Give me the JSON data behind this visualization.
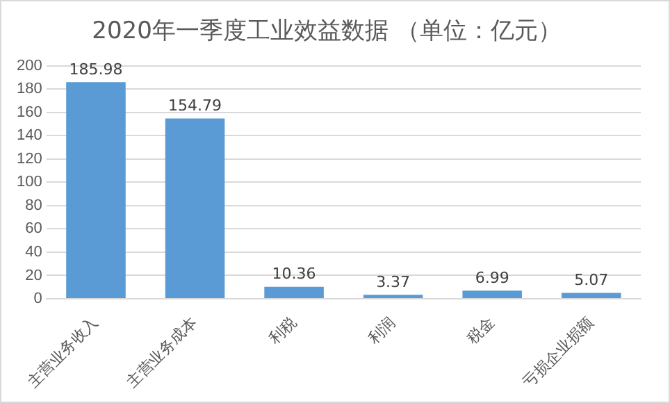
{
  "chart_data": {
    "type": "bar",
    "title": "2020年一季度工业效益数据 （单位：亿元）",
    "categories": [
      "主营业务收入",
      "主营业务成本",
      "利税",
      "利润",
      "税金",
      "亏损企业损额"
    ],
    "values": [
      185.98,
      154.79,
      10.36,
      3.37,
      6.99,
      5.07
    ],
    "color": "#5b9bd5",
    "ylim": [
      0,
      200
    ],
    "yticks": [
      0,
      20,
      40,
      60,
      80,
      100,
      120,
      140,
      160,
      180,
      200
    ],
    "grid": "y",
    "data_labels": true
  }
}
